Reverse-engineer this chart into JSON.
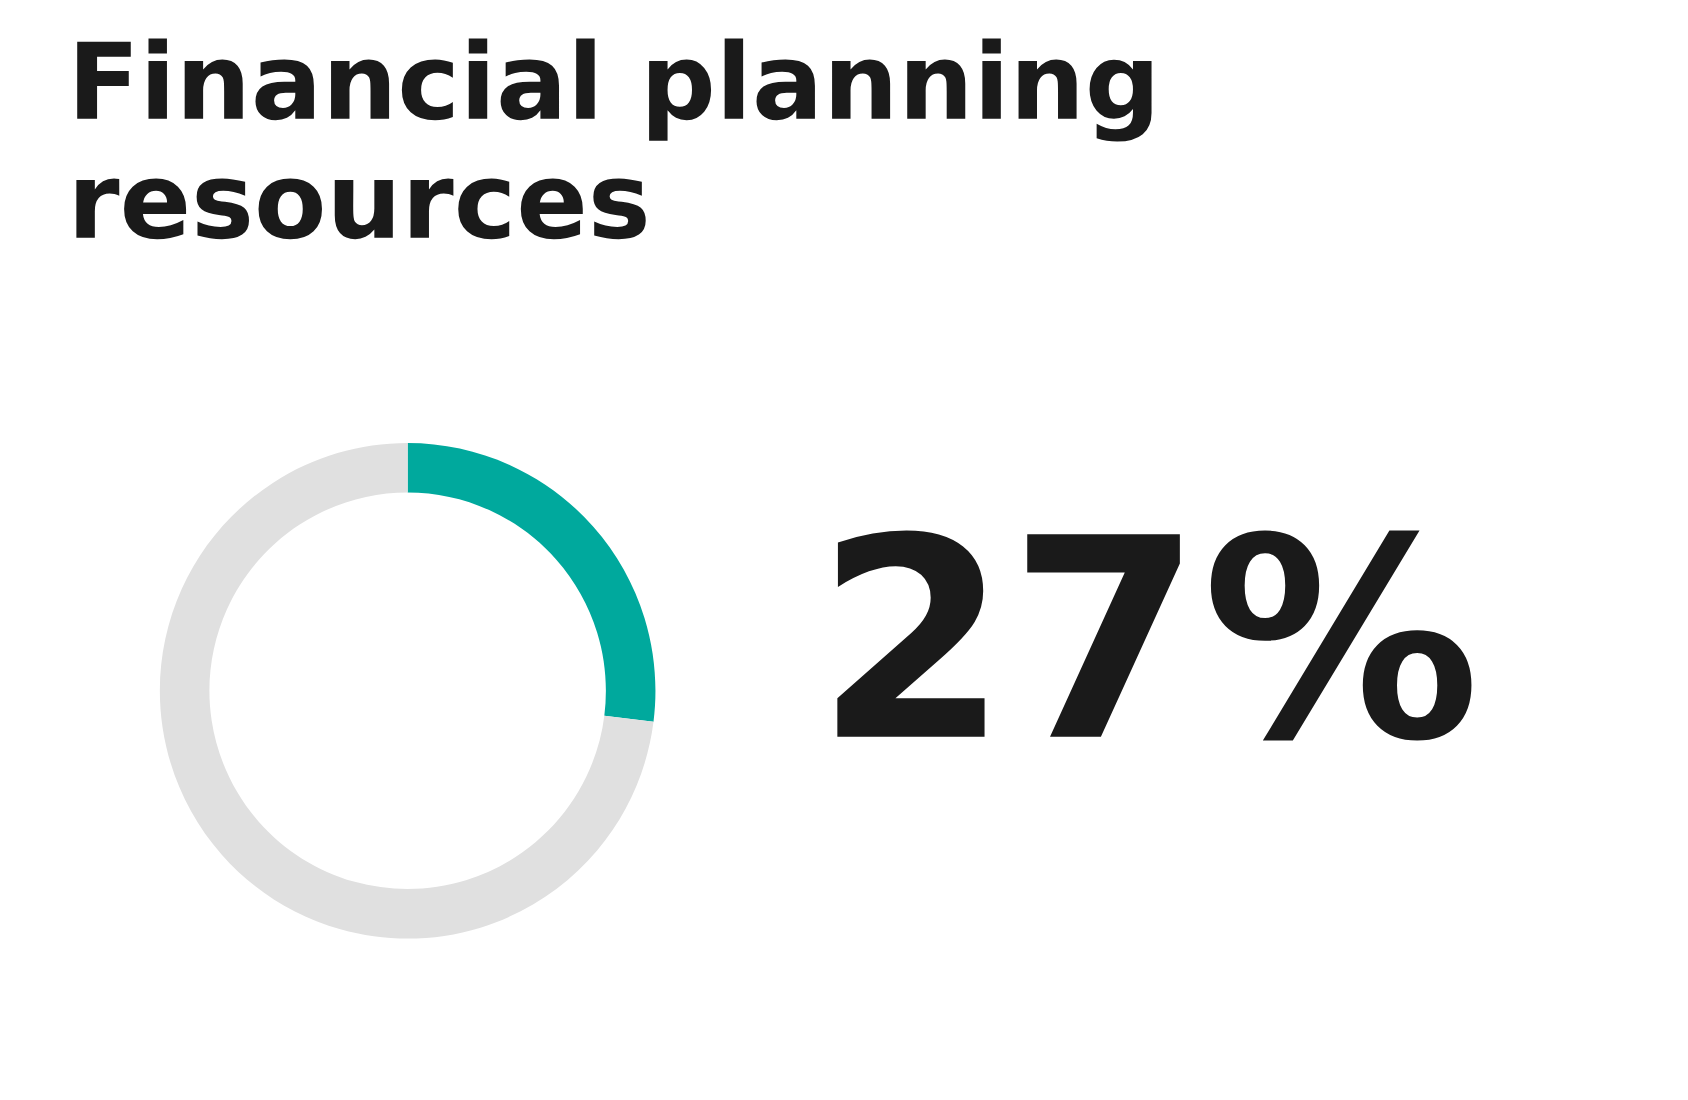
{
  "chart_data": {
    "type": "donut",
    "title": "Financial planning resources",
    "categories": [
      null,
      null
    ],
    "values": [
      27,
      73
    ],
    "colors": [
      "#00a99d",
      "#e0e0e0"
    ],
    "value_labels": [
      "27%",
      null
    ]
  }
}
